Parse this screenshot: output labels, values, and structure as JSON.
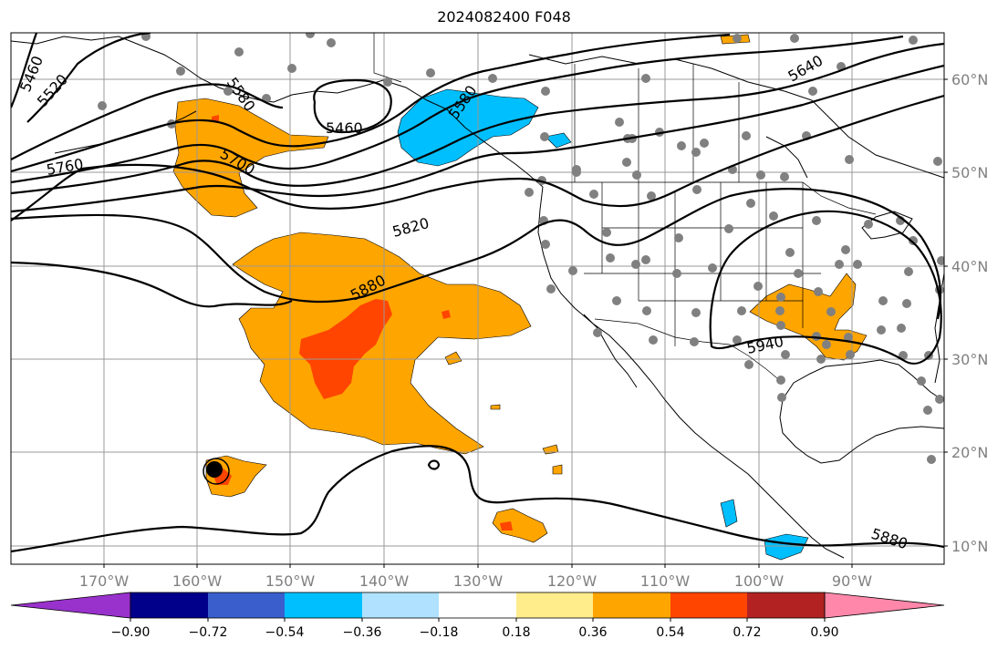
{
  "title": "2024082400 F048",
  "lon_ticks": [
    "170°W",
    "160°W",
    "150°W",
    "140°W",
    "130°W",
    "120°W",
    "110°W",
    "100°W",
    "90°W"
  ],
  "lat_ticks": [
    "10°N",
    "20°N",
    "30°N",
    "40°N",
    "50°N",
    "60°N"
  ],
  "contour_labels": [
    "5460",
    "5520",
    "5580",
    "5460",
    "5580",
    "5640",
    "5700",
    "5760",
    "5820",
    "5880",
    "5940",
    "5880"
  ],
  "colorbar": {
    "tick_labels": [
      "−0.90",
      "−0.72",
      "−0.54",
      "−0.36",
      "−0.18",
      "0.18",
      "0.36",
      "0.54",
      "0.72",
      "0.90"
    ],
    "colors": [
      "#9932cc",
      "#00008b",
      "#3a5fcd",
      "#00bfff",
      "#b0e2ff",
      "#ffffff",
      "#ffec8b",
      "#ffa500",
      "#ff4500",
      "#b22222",
      "#ff88aa"
    ]
  },
  "map_colors": {
    "positive_fill": "#ffa500",
    "strong_positive_fill": "#ff4500",
    "negative_fill": "#00bfff",
    "station_dot": "#808080",
    "gridline": "#999999",
    "contour": "#000000"
  }
}
